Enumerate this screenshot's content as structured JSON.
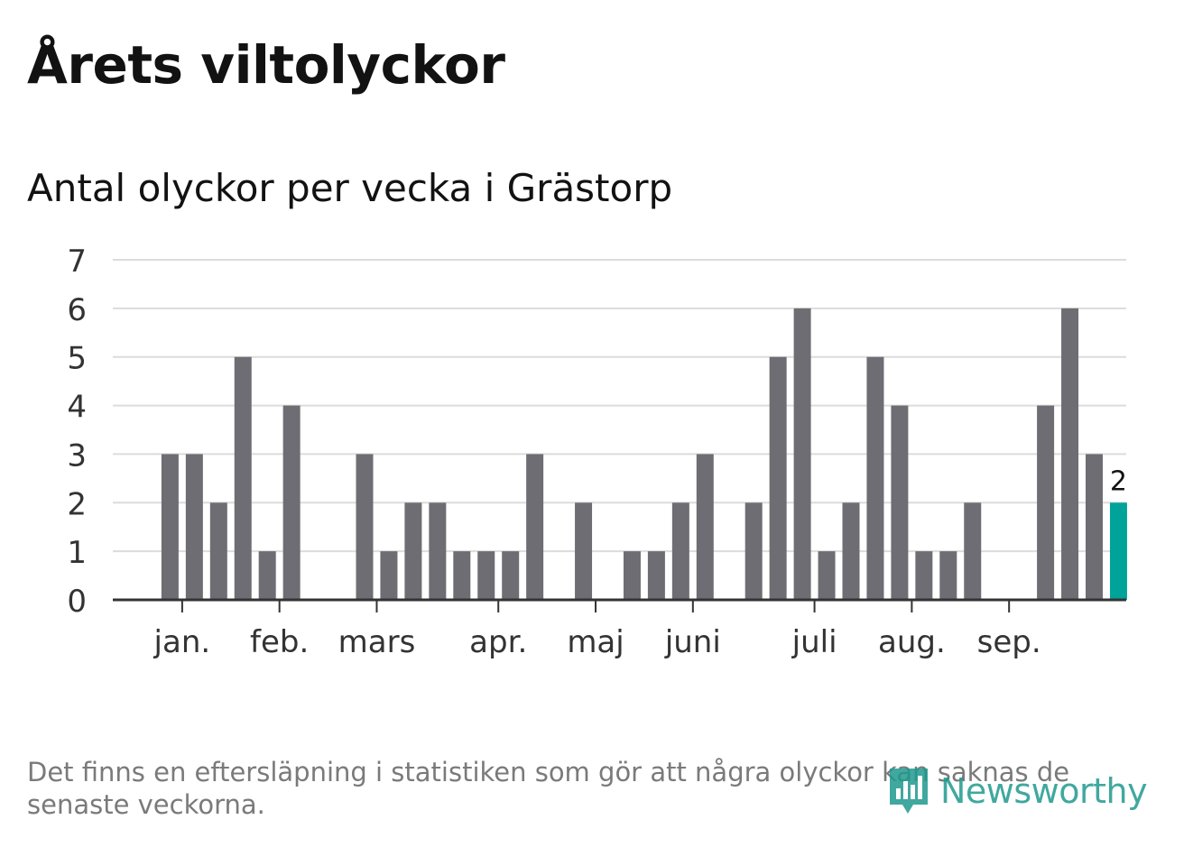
{
  "header": {
    "title": "Årets viltolyckor",
    "subtitle": "Antal olyckor per vecka i Grästorp"
  },
  "chart_data": {
    "type": "bar",
    "title": "Årets viltolyckor",
    "subtitle": "Antal olyckor per vecka i Grästorp",
    "xlabel": "",
    "ylabel": "",
    "ylim": [
      0,
      7
    ],
    "yticks": [
      0,
      1,
      2,
      3,
      4,
      5,
      6,
      7
    ],
    "grid": true,
    "legend": "none",
    "weeks": [
      1,
      2,
      3,
      4,
      5,
      6,
      7,
      8,
      9,
      10,
      11,
      12,
      13,
      14,
      15,
      16,
      17,
      18,
      19,
      20,
      21,
      22,
      23,
      24,
      25,
      26,
      27,
      28,
      29,
      30,
      31,
      32,
      33,
      34,
      35,
      36,
      37,
      38,
      39,
      40,
      41,
      42,
      43
    ],
    "values": [
      0,
      0,
      3,
      3,
      2,
      5,
      1,
      4,
      0,
      0,
      3,
      1,
      2,
      2,
      1,
      1,
      1,
      3,
      0,
      2,
      0,
      1,
      1,
      2,
      3,
      0,
      2,
      5,
      6,
      1,
      2,
      5,
      4,
      1,
      1,
      2,
      0,
      0,
      4,
      6,
      3,
      2,
      0
    ],
    "highlight_index": 41,
    "highlight_label": "2",
    "month_labels": [
      {
        "label": "jan.",
        "week": 3.5
      },
      {
        "label": "feb.",
        "week": 7.5
      },
      {
        "label": "mars",
        "week": 11.5
      },
      {
        "label": "apr.",
        "week": 16.5
      },
      {
        "label": "maj",
        "week": 20.5
      },
      {
        "label": "juni",
        "week": 24.5
      },
      {
        "label": "juli",
        "week": 29.5
      },
      {
        "label": "aug.",
        "week": 33.5
      },
      {
        "label": "sep.",
        "week": 37.5
      }
    ],
    "colors": {
      "bar": "#6e6d73",
      "highlight": "#00a39a",
      "grid": "#dcdcdc",
      "axis": "#333333",
      "tick_text": "#333333"
    }
  },
  "footer": {
    "note": "Det finns en eftersläpning i statistiken som gör att några olyckor kan saknas de senaste veckorna.",
    "logo_text": "Newsworthy",
    "logo_icon": "newsworthy-chart-icon"
  }
}
